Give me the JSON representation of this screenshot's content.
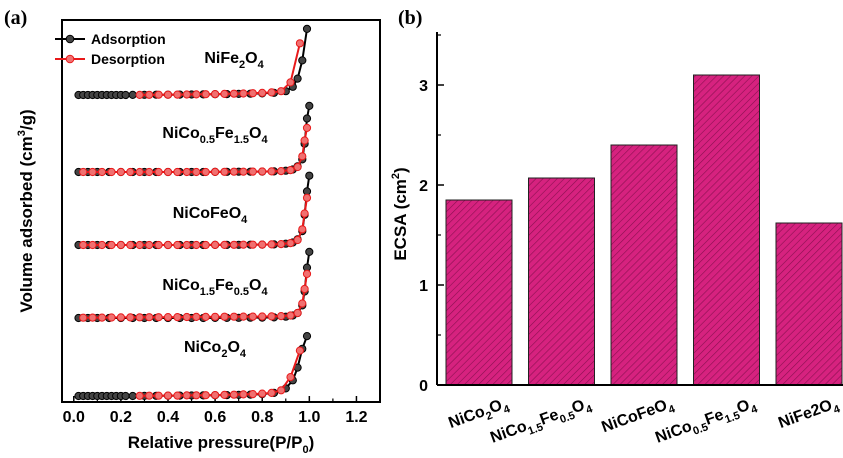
{
  "chart_data": [
    {
      "panel": "(a)",
      "type": "line",
      "xlabel": "Relative pressure(P/P",
      "xlabel_sub": "0",
      "xlabel_end": ")",
      "ylabel": "Volume adsorbed (cm",
      "ylabel_sup": "3",
      "ylabel_end": "/g)",
      "xlim": [
        -0.05,
        1.3
      ],
      "xticks": [
        "0.0",
        "0.2",
        "0.4",
        "0.6",
        "0.8",
        "1.0",
        "1.2"
      ],
      "y_ticks_shown": false,
      "legend": {
        "placement": "top-left",
        "entries": [
          "Adsorption",
          "Desorption"
        ]
      },
      "series_colors": {
        "Adsorption": "#000000",
        "Desorption": "#e8191a"
      },
      "isotherms": [
        {
          "sample_parts": [
            [
              "NiFe",
              "n"
            ],
            [
              "2",
              "sub"
            ],
            [
              "O",
              "n"
            ],
            [
              "4",
              "sub"
            ]
          ],
          "adsorption": {
            "x": [
              0.02,
              0.04,
              0.06,
              0.08,
              0.1,
              0.12,
              0.14,
              0.16,
              0.18,
              0.2,
              0.22,
              0.25,
              0.3,
              0.35,
              0.4,
              0.45,
              0.5,
              0.55,
              0.6,
              0.65,
              0.7,
              0.75,
              0.8,
              0.85,
              0.9,
              0.93,
              0.95,
              0.97,
              0.99
            ],
            "y": [
              0,
              0,
              0,
              0,
              0,
              0,
              0,
              0,
              0,
              0,
              0,
              0.02,
              0.03,
              0.04,
              0.05,
              0.06,
              0.08,
              0.1,
              0.12,
              0.14,
              0.17,
              0.2,
              0.25,
              0.35,
              0.6,
              1.3,
              2.6,
              5.5,
              10.5
            ]
          },
          "desorption": {
            "x": [
              0.28,
              0.32,
              0.36,
              0.4,
              0.44,
              0.48,
              0.52,
              0.56,
              0.6,
              0.64,
              0.68,
              0.72,
              0.76,
              0.8,
              0.84,
              0.88,
              0.92,
              0.96
            ],
            "y": [
              0.02,
              0.03,
              0.04,
              0.05,
              0.06,
              0.08,
              0.1,
              0.12,
              0.14,
              0.17,
              0.2,
              0.24,
              0.28,
              0.34,
              0.42,
              0.6,
              2.0,
              8.2
            ]
          }
        },
        {
          "sample_parts": [
            [
              "NiCo",
              "n"
            ],
            [
              "0.5",
              "sub"
            ],
            [
              "Fe",
              "n"
            ],
            [
              "1.5",
              "sub"
            ],
            [
              "O",
              "n"
            ],
            [
              "4",
              "sub"
            ]
          ],
          "adsorption": {
            "x": [
              0.02,
              0.06,
              0.1,
              0.15,
              0.2,
              0.25,
              0.3,
              0.35,
              0.4,
              0.45,
              0.5,
              0.55,
              0.6,
              0.65,
              0.7,
              0.75,
              0.8,
              0.85,
              0.9,
              0.93,
              0.95,
              0.97,
              0.98,
              0.99,
              1.0
            ],
            "y": [
              0,
              0,
              0,
              0,
              0,
              0,
              0,
              0,
              0,
              0,
              0,
              0,
              0.02,
              0.03,
              0.04,
              0.05,
              0.07,
              0.1,
              0.2,
              0.4,
              0.9,
              2.0,
              4.5,
              8.5,
              10.5
            ]
          },
          "desorption": {
            "x": [
              0.04,
              0.08,
              0.12,
              0.16,
              0.2,
              0.24,
              0.28,
              0.32,
              0.36,
              0.4,
              0.44,
              0.48,
              0.52,
              0.56,
              0.6,
              0.64,
              0.68,
              0.72,
              0.76,
              0.8,
              0.84,
              0.88,
              0.92,
              0.95,
              0.97,
              0.98,
              0.99
            ],
            "y": [
              0,
              0,
              0,
              0,
              0,
              0,
              0,
              0,
              0,
              0,
              0,
              0,
              0,
              0,
              0.02,
              0.03,
              0.04,
              0.05,
              0.06,
              0.08,
              0.1,
              0.15,
              0.3,
              0.8,
              2.5,
              5.0,
              7.0
            ]
          }
        },
        {
          "sample_parts": [
            [
              "NiCoFeO",
              "n"
            ],
            [
              "4",
              "sub"
            ]
          ],
          "adsorption": {
            "x": [
              0.02,
              0.06,
              0.1,
              0.15,
              0.2,
              0.25,
              0.3,
              0.35,
              0.4,
              0.45,
              0.5,
              0.55,
              0.6,
              0.65,
              0.7,
              0.75,
              0.8,
              0.85,
              0.9,
              0.93,
              0.95,
              0.97,
              0.98,
              0.99,
              1.0
            ],
            "y": [
              0,
              0,
              0,
              0,
              0,
              0,
              0,
              0,
              0,
              0,
              0,
              0,
              0.01,
              0.02,
              0.03,
              0.04,
              0.06,
              0.1,
              0.2,
              0.4,
              0.9,
              2.2,
              4.8,
              8.5,
              11.0
            ]
          },
          "desorption": {
            "x": [
              0.04,
              0.08,
              0.12,
              0.16,
              0.2,
              0.24,
              0.28,
              0.32,
              0.36,
              0.4,
              0.44,
              0.48,
              0.52,
              0.56,
              0.6,
              0.64,
              0.68,
              0.72,
              0.76,
              0.8,
              0.84,
              0.88,
              0.92,
              0.95,
              0.97,
              0.98,
              0.99
            ],
            "y": [
              0,
              0,
              0,
              0,
              0,
              0,
              0,
              0,
              0,
              0,
              0,
              0,
              0,
              0,
              0.01,
              0.02,
              0.03,
              0.04,
              0.05,
              0.07,
              0.1,
              0.15,
              0.3,
              0.8,
              2.5,
              5.0,
              7.5
            ]
          }
        },
        {
          "sample_parts": [
            [
              "NiCo",
              "n"
            ],
            [
              "1.5",
              "sub"
            ],
            [
              "Fe",
              "n"
            ],
            [
              "0.5",
              "sub"
            ],
            [
              "O",
              "n"
            ],
            [
              "4",
              "sub"
            ]
          ],
          "adsorption": {
            "x": [
              0.02,
              0.06,
              0.1,
              0.15,
              0.2,
              0.25,
              0.3,
              0.35,
              0.4,
              0.45,
              0.5,
              0.55,
              0.6,
              0.65,
              0.7,
              0.75,
              0.8,
              0.85,
              0.9,
              0.93,
              0.95,
              0.97,
              0.98,
              0.99,
              1.0
            ],
            "y": [
              0,
              0,
              0,
              0,
              0,
              0,
              0,
              0,
              0,
              0,
              0,
              0,
              0.01,
              0.02,
              0.03,
              0.04,
              0.06,
              0.1,
              0.2,
              0.4,
              0.8,
              2.0,
              4.2,
              8.0,
              10.5
            ]
          },
          "desorption": {
            "x": [
              0.04,
              0.08,
              0.12,
              0.16,
              0.2,
              0.24,
              0.28,
              0.32,
              0.36,
              0.4,
              0.44,
              0.48,
              0.52,
              0.56,
              0.6,
              0.64,
              0.68,
              0.72,
              0.76,
              0.8,
              0.84,
              0.88,
              0.92,
              0.95,
              0.97,
              0.98,
              0.99
            ],
            "y": [
              0.05,
              0.06,
              0.07,
              0.08,
              0.09,
              0.1,
              0.11,
              0.12,
              0.13,
              0.14,
              0.15,
              0.16,
              0.17,
              0.18,
              0.19,
              0.2,
              0.21,
              0.22,
              0.23,
              0.24,
              0.26,
              0.3,
              0.4,
              0.8,
              2.3,
              4.6,
              7.0
            ]
          }
        },
        {
          "sample_parts": [
            [
              "NiCo",
              "n"
            ],
            [
              "2",
              "sub"
            ],
            [
              "O",
              "n"
            ],
            [
              "4",
              "sub"
            ]
          ],
          "adsorption": {
            "x": [
              0.02,
              0.04,
              0.06,
              0.08,
              0.1,
              0.12,
              0.14,
              0.16,
              0.18,
              0.2,
              0.22,
              0.25,
              0.3,
              0.35,
              0.4,
              0.45,
              0.5,
              0.55,
              0.6,
              0.65,
              0.7,
              0.75,
              0.8,
              0.85,
              0.9,
              0.93,
              0.95,
              0.97,
              0.99
            ],
            "y": [
              0,
              0,
              0,
              0,
              0,
              0,
              0,
              0,
              0,
              0,
              0,
              0,
              0.02,
              0.03,
              0.04,
              0.06,
              0.08,
              0.1,
              0.12,
              0.15,
              0.18,
              0.22,
              0.3,
              0.5,
              1.2,
              2.5,
              4.5,
              7.5,
              9.5
            ]
          },
          "desorption": {
            "x": [
              0.28,
              0.32,
              0.36,
              0.4,
              0.44,
              0.48,
              0.52,
              0.56,
              0.6,
              0.64,
              0.68,
              0.72,
              0.76,
              0.8,
              0.84,
              0.88,
              0.92,
              0.96
            ],
            "y": [
              0.03,
              0.04,
              0.05,
              0.06,
              0.07,
              0.09,
              0.11,
              0.13,
              0.15,
              0.18,
              0.21,
              0.25,
              0.3,
              0.38,
              0.5,
              0.9,
              3.0,
              7.2
            ]
          }
        }
      ]
    },
    {
      "panel": "(b)",
      "type": "bar",
      "ylabel": "ECSA (cm",
      "ylabel_sup": "2",
      "ylabel_end": ")",
      "ylim": [
        0,
        3.5
      ],
      "yticks": [
        "0",
        "1",
        "2",
        "3"
      ],
      "bar_color": "#d6227f",
      "bar_hatch": "diagonal",
      "categories_parts": [
        [
          [
            "NiCo",
            "n"
          ],
          [
            "2",
            "sub"
          ],
          [
            "O",
            "n"
          ],
          [
            "4",
            "sub"
          ]
        ],
        [
          [
            "NiCo",
            "n"
          ],
          [
            "1.5",
            "sub"
          ],
          [
            "Fe",
            "n"
          ],
          [
            "0.5",
            "sub"
          ],
          [
            "O",
            "n"
          ],
          [
            "4",
            "sub"
          ]
        ],
        [
          [
            "NiCoFeO",
            "n"
          ],
          [
            "4",
            "sub"
          ]
        ],
        [
          [
            "NiCo",
            "n"
          ],
          [
            "0.5",
            "sub"
          ],
          [
            "Fe",
            "n"
          ],
          [
            "1.5",
            "sub"
          ],
          [
            "O",
            "n"
          ],
          [
            "4",
            "sub"
          ]
        ],
        [
          [
            "NiFe2O",
            "n"
          ],
          [
            "4",
            "sub"
          ]
        ]
      ],
      "values": [
        1.85,
        2.07,
        2.4,
        3.1,
        1.62
      ]
    }
  ]
}
